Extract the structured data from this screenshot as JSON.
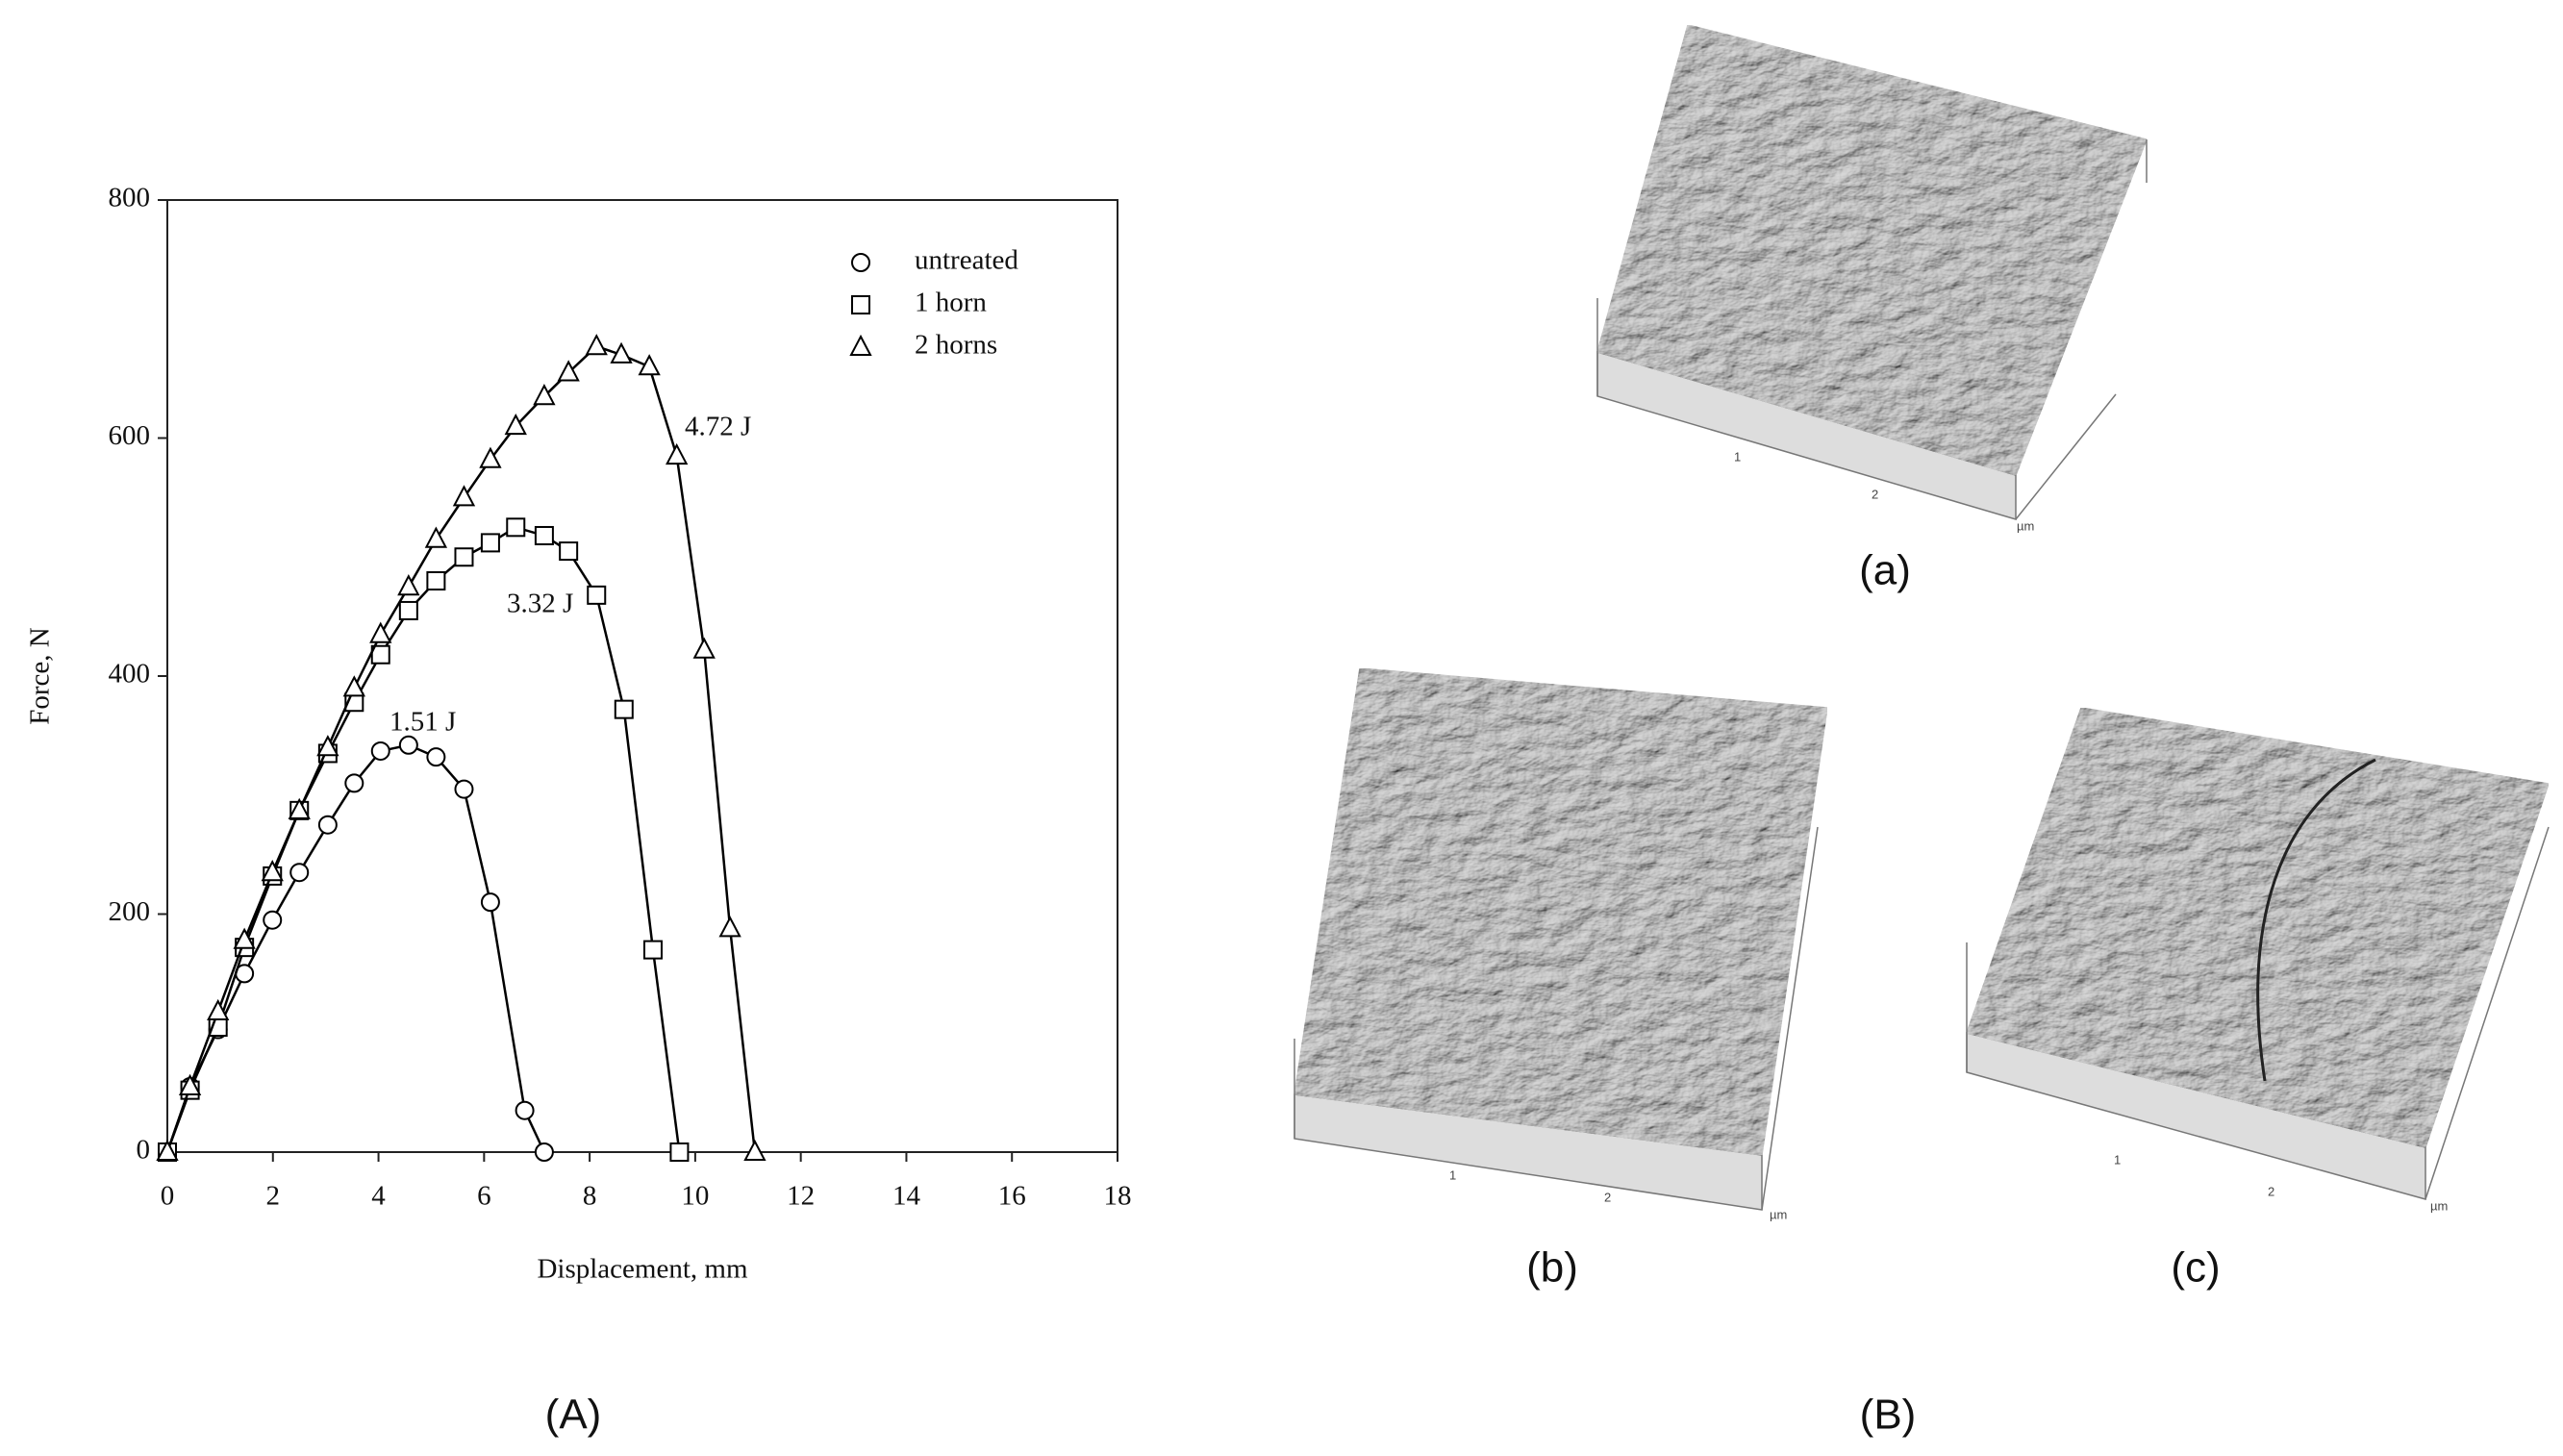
{
  "chart_data": {
    "type": "line",
    "xlabel": "Displacement, mm",
    "ylabel": "Force, N",
    "xlim": [
      0,
      18
    ],
    "xticks": [
      0,
      2,
      4,
      6,
      8,
      10,
      12,
      14,
      16,
      18
    ],
    "ylim": [
      0,
      800
    ],
    "yticks": [
      0,
      200,
      400,
      600,
      800
    ],
    "series": [
      {
        "name": "untreated",
        "color": "#000000",
        "marker": "circle",
        "x": [
          0,
          0.43,
          0.96,
          1.46,
          1.99,
          2.5,
          3.04,
          3.54,
          4.04,
          4.57,
          5.09,
          5.62,
          6.12,
          6.77,
          7.14
        ],
        "values": [
          0,
          55,
          103,
          150,
          195,
          235,
          275,
          310,
          337,
          342,
          332,
          305,
          210,
          35,
          0
        ]
      },
      {
        "name": "1 horn",
        "color": "#000000",
        "marker": "square",
        "x": [
          0,
          0.43,
          0.96,
          1.46,
          1.99,
          2.5,
          3.04,
          3.54,
          4.04,
          4.57,
          5.09,
          5.62,
          6.12,
          6.6,
          7.14,
          7.6,
          8.13,
          8.65,
          9.2,
          9.7
        ],
        "values": [
          0,
          52,
          105,
          172,
          232,
          287,
          335,
          378,
          418,
          455,
          480,
          500,
          512,
          525,
          518,
          505,
          468,
          372,
          170,
          0
        ]
      },
      {
        "name": "2 horns",
        "color": "#000000",
        "marker": "triangle",
        "x": [
          0,
          0.43,
          0.96,
          1.46,
          1.99,
          2.5,
          3.04,
          3.54,
          4.04,
          4.57,
          5.09,
          5.62,
          6.12,
          6.6,
          7.14,
          7.6,
          8.13,
          8.6,
          9.13,
          9.65,
          10.17,
          10.66,
          11.13
        ],
        "values": [
          0,
          55,
          118,
          178,
          235,
          287,
          340,
          390,
          435,
          475,
          515,
          550,
          582,
          610,
          635,
          655,
          677,
          670,
          660,
          585,
          422,
          188,
          0
        ]
      }
    ],
    "annotations": [
      "1.51 J",
      "3.32 J",
      "4.72 J"
    ],
    "legend": "upper right"
  },
  "panel_labels": {
    "A": "(A)",
    "B": "(B)",
    "a": "(a)",
    "b": "(b)",
    "c": "(c)"
  },
  "afm_axis_labels": [
    "1",
    "2",
    "µm"
  ]
}
